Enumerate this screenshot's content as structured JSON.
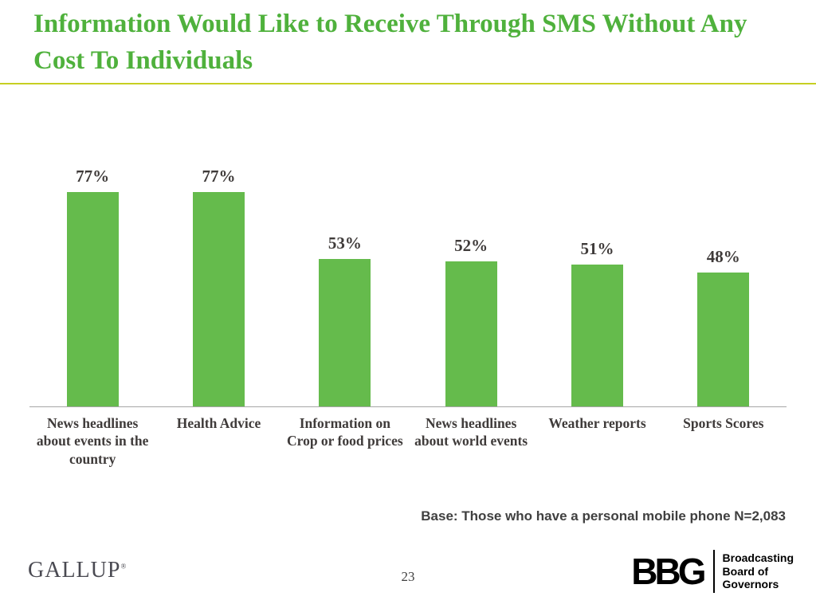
{
  "slide": {
    "title": "Information Would Like to Receive Through SMS Without Any Cost To Individuals",
    "base_note": "Base: Those who have a personal mobile phone N=2,083",
    "page_number": "23",
    "footer": {
      "gallup_logo": "GALLUP",
      "gallup_mark": "®",
      "bbg_mark": "BBG",
      "bbg_text_lines": [
        "Broadcasting",
        "Board of",
        "Governors"
      ]
    },
    "colors": {
      "title_green": "#4fb13c",
      "bar_green": "#65bb4c",
      "divider_olive": "#c6cf22",
      "text_dark": "#3f3b3a",
      "axis_gray": "#a6a6a6"
    }
  },
  "chart_data": {
    "type": "bar",
    "title": "Information Would Like to Receive Through SMS Without Any Cost To Individuals",
    "categories": [
      "News headlines about events in the country",
      "Health Advice",
      "Information on Crop or food prices",
      "News headlines about world events",
      "Weather reports",
      "Sports Scores"
    ],
    "values": [
      77,
      77,
      53,
      52,
      51,
      48
    ],
    "value_labels": [
      "77%",
      "77%",
      "53%",
      "52%",
      "51%",
      "48%"
    ],
    "xlabel": "",
    "ylabel": "",
    "ylim": [
      0,
      100
    ],
    "grid": false,
    "legend": false,
    "bar_color": "#65bb4c"
  }
}
